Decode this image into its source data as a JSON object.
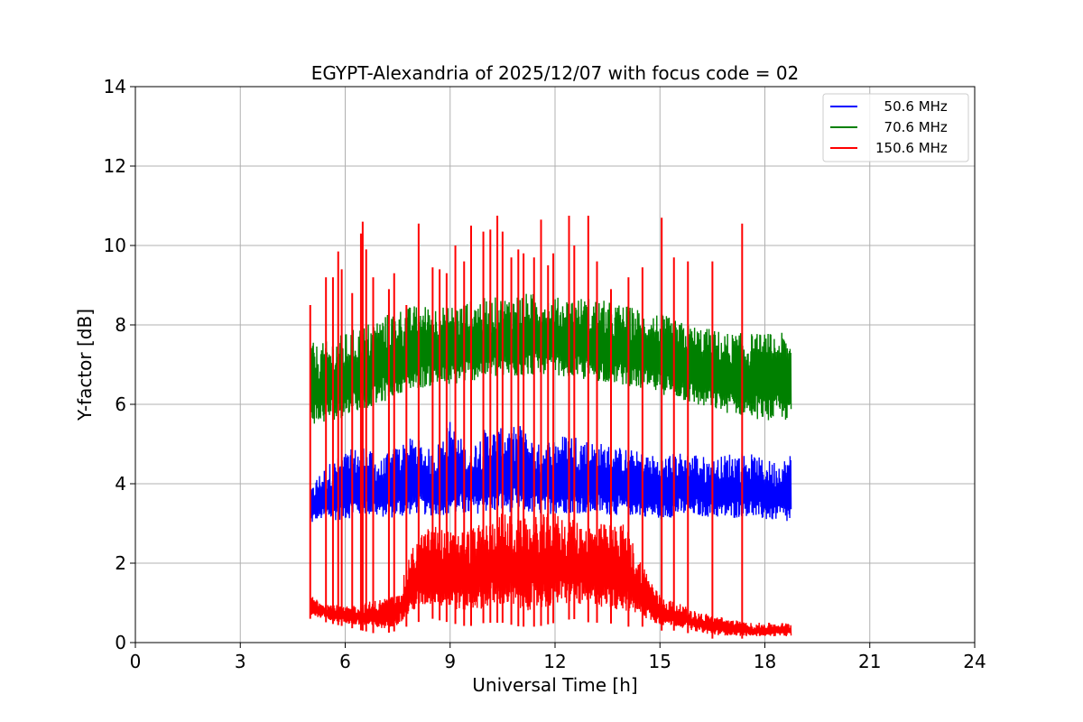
{
  "chart_data": {
    "type": "line",
    "title": "EGYPT-Alexandria of 2025/12/07 with focus code = 02",
    "xlabel": "Universal Time [h]",
    "ylabel": "Y-factor [dB]",
    "xlim": [
      0,
      24
    ],
    "ylim": [
      0,
      14
    ],
    "xticks": [
      0,
      3,
      6,
      9,
      12,
      15,
      18,
      21,
      24
    ],
    "yticks": [
      0,
      2,
      4,
      6,
      8,
      10,
      12,
      14
    ],
    "grid": true,
    "legend_position": "top-right",
    "series": [
      {
        "name": "50.6 MHz",
        "legend_label": "  50.6 MHz",
        "color": "#0000ff",
        "x": [
          5.0,
          5.2,
          5.5,
          6.0,
          6.5,
          7.0,
          7.5,
          8.0,
          8.5,
          9.0,
          9.5,
          10.0,
          10.5,
          11.0,
          11.5,
          12.0,
          12.5,
          13.0,
          13.5,
          14.0,
          14.5,
          15.0,
          15.5,
          16.0,
          16.5,
          17.0,
          17.5,
          18.0,
          18.5,
          18.75
        ],
        "low": [
          2.8,
          2.9,
          2.8,
          2.8,
          2.9,
          2.9,
          2.8,
          2.9,
          2.9,
          2.8,
          2.9,
          2.9,
          2.9,
          2.9,
          2.9,
          2.9,
          2.9,
          2.9,
          2.9,
          2.9,
          2.9,
          2.8,
          2.9,
          2.9,
          2.9,
          2.8,
          2.9,
          2.8,
          2.8,
          2.6
        ],
        "high": [
          3.8,
          4.2,
          4.5,
          4.8,
          5.0,
          4.6,
          5.0,
          5.2,
          4.8,
          5.6,
          4.9,
          5.4,
          5.4,
          5.5,
          5.0,
          5.2,
          5.3,
          5.1,
          5.0,
          4.9,
          4.8,
          4.7,
          4.8,
          4.8,
          4.6,
          4.8,
          4.8,
          4.6,
          4.6,
          4.8
        ]
      },
      {
        "name": "70.6 MHz",
        "legend_label": "  70.6 MHz",
        "color": "#008000",
        "x": [
          5.0,
          5.2,
          5.5,
          6.0,
          6.5,
          7.0,
          7.5,
          8.0,
          8.5,
          9.0,
          9.5,
          10.0,
          10.5,
          11.0,
          11.5,
          12.0,
          12.5,
          13.0,
          13.5,
          14.0,
          14.5,
          15.0,
          15.5,
          16.0,
          16.5,
          17.0,
          17.5,
          18.0,
          18.5,
          18.75
        ],
        "low": [
          5.2,
          5.1,
          5.2,
          5.3,
          5.5,
          5.6,
          5.9,
          6.0,
          6.1,
          6.1,
          6.2,
          6.3,
          6.3,
          6.3,
          6.4,
          6.4,
          6.3,
          6.2,
          6.2,
          6.1,
          6.0,
          5.9,
          5.8,
          5.6,
          5.5,
          5.4,
          5.3,
          5.2,
          5.2,
          5.2
        ],
        "high": [
          7.6,
          7.5,
          7.6,
          7.8,
          8.0,
          8.2,
          8.4,
          8.5,
          8.5,
          8.5,
          8.6,
          8.7,
          8.7,
          8.8,
          8.8,
          8.7,
          8.7,
          8.7,
          8.6,
          8.5,
          8.4,
          8.3,
          8.1,
          8.0,
          7.9,
          7.8,
          7.8,
          7.8,
          7.8,
          7.7
        ]
      },
      {
        "name": "150.6 MHz",
        "legend_label": "150.6 MHz",
        "color": "#ff0000",
        "x": [
          5.0,
          5.5,
          6.0,
          6.5,
          7.0,
          7.5,
          8.0,
          8.5,
          9.0,
          9.5,
          10.0,
          10.5,
          11.0,
          11.5,
          12.0,
          12.5,
          13.0,
          13.5,
          14.0,
          14.5,
          15.0,
          15.5,
          16.0,
          16.5,
          17.0,
          17.5,
          18.0,
          18.5,
          18.75
        ],
        "low": [
          0.6,
          0.5,
          0.4,
          0.3,
          0.2,
          0.3,
          0.5,
          0.6,
          0.5,
          0.4,
          0.5,
          0.5,
          0.4,
          0.4,
          0.5,
          0.6,
          0.5,
          0.5,
          0.4,
          0.4,
          0.3,
          0.3,
          0.2,
          0.1,
          0.1,
          0.1,
          0.1,
          0.1,
          0.1
        ],
        "high": [
          1.2,
          1.0,
          0.9,
          1.0,
          1.1,
          1.2,
          2.6,
          3.0,
          2.8,
          2.9,
          3.0,
          3.3,
          3.1,
          3.2,
          3.3,
          3.1,
          3.0,
          3.0,
          3.0,
          2.0,
          1.2,
          1.0,
          0.8,
          0.7,
          0.6,
          0.5,
          0.5,
          0.5,
          0.5
        ],
        "spikes": [
          [
            5.0,
            8.5
          ],
          [
            5.45,
            9.2
          ],
          [
            5.65,
            9.2
          ],
          [
            5.8,
            9.85
          ],
          [
            5.9,
            9.4
          ],
          [
            6.2,
            8.8
          ],
          [
            6.45,
            10.3
          ],
          [
            6.5,
            10.6
          ],
          [
            6.6,
            9.9
          ],
          [
            6.8,
            9.2
          ],
          [
            7.25,
            8.9
          ],
          [
            7.4,
            9.3
          ],
          [
            7.75,
            8.5
          ],
          [
            8.1,
            10.55
          ],
          [
            8.5,
            9.45
          ],
          [
            8.7,
            9.4
          ],
          [
            8.9,
            9.3
          ],
          [
            9.15,
            10.0
          ],
          [
            9.4,
            9.6
          ],
          [
            9.6,
            10.5
          ],
          [
            9.95,
            10.35
          ],
          [
            10.15,
            10.4
          ],
          [
            10.35,
            10.75
          ],
          [
            10.5,
            10.35
          ],
          [
            10.75,
            9.7
          ],
          [
            10.95,
            9.9
          ],
          [
            11.1,
            9.8
          ],
          [
            11.4,
            9.7
          ],
          [
            11.6,
            10.65
          ],
          [
            11.8,
            9.5
          ],
          [
            11.95,
            9.8
          ],
          [
            12.4,
            10.75
          ],
          [
            12.55,
            10.0
          ],
          [
            12.95,
            10.75
          ],
          [
            13.2,
            9.6
          ],
          [
            13.6,
            8.9
          ],
          [
            14.1,
            9.2
          ],
          [
            14.5,
            9.45
          ],
          [
            15.05,
            10.7
          ],
          [
            15.4,
            9.7
          ],
          [
            15.8,
            9.6
          ],
          [
            16.5,
            9.6
          ],
          [
            17.35,
            10.55
          ]
        ]
      }
    ]
  }
}
